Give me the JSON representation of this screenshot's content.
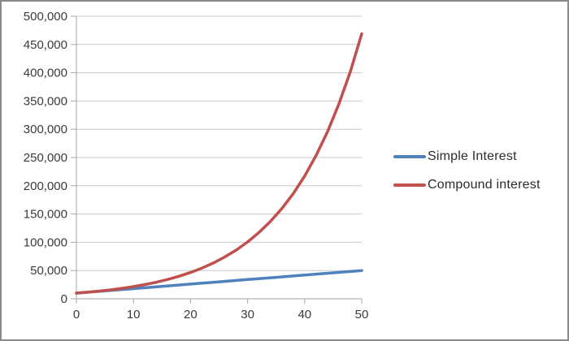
{
  "chart_data": {
    "type": "line",
    "title": "",
    "xlabel": "",
    "ylabel": "",
    "xlim": [
      0,
      50
    ],
    "ylim": [
      0,
      500000
    ],
    "x_ticks": [
      0,
      10,
      20,
      30,
      40,
      50
    ],
    "x_tick_labels": [
      "0",
      "10",
      "20",
      "30",
      "40",
      "50"
    ],
    "y_ticks": [
      0,
      50000,
      100000,
      150000,
      200000,
      250000,
      300000,
      350000,
      400000,
      450000,
      500000
    ],
    "y_tick_labels": [
      "0",
      "50,000",
      "100,000",
      "150,000",
      "200,000",
      "250,000",
      "300,000",
      "350,000",
      "400,000",
      "450,000",
      "500,000"
    ],
    "grid": "horizontal",
    "legend_position": "right-middle",
    "series": [
      {
        "name": "Simple Interest",
        "color": "#4f81bd",
        "points": [
          [
            0,
            10000
          ],
          [
            5,
            14000
          ],
          [
            10,
            18000
          ],
          [
            15,
            22000
          ],
          [
            20,
            26000
          ],
          [
            25,
            30000
          ],
          [
            30,
            34000
          ],
          [
            35,
            38000
          ],
          [
            40,
            42000
          ],
          [
            45,
            46000
          ],
          [
            50,
            50000
          ]
        ]
      },
      {
        "name": "Compound interest",
        "color": "#c0504d",
        "points": [
          [
            0,
            10000
          ],
          [
            2,
            11664
          ],
          [
            4,
            13605
          ],
          [
            6,
            15869
          ],
          [
            8,
            18509
          ],
          [
            10,
            21589
          ],
          [
            12,
            25182
          ],
          [
            14,
            29372
          ],
          [
            16,
            34259
          ],
          [
            18,
            39960
          ],
          [
            20,
            46610
          ],
          [
            22,
            54365
          ],
          [
            24,
            63412
          ],
          [
            26,
            73964
          ],
          [
            28,
            86271
          ],
          [
            30,
            100627
          ],
          [
            32,
            117371
          ],
          [
            34,
            136895
          ],
          [
            36,
            159672
          ],
          [
            38,
            186241
          ],
          [
            40,
            217245
          ],
          [
            42,
            253383
          ],
          [
            44,
            295546
          ],
          [
            46,
            344722
          ],
          [
            48,
            402074
          ],
          [
            50,
            469016
          ]
        ]
      }
    ],
    "colors": {
      "axis": "#a6a6a6",
      "gridline": "#c9c9c9",
      "tick_label": "#3a3a3a",
      "legend_text": "#2b2b2b",
      "frame_border": "#898989",
      "background": "#ffffff"
    }
  }
}
